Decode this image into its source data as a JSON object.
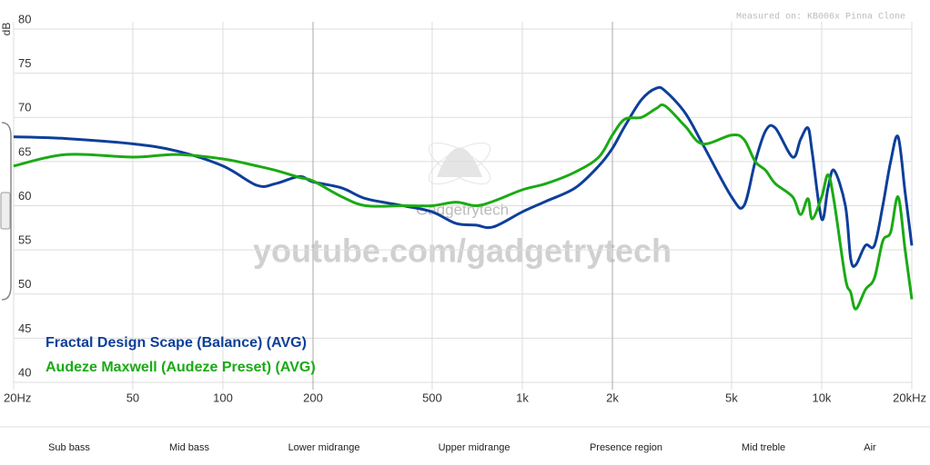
{
  "chart_data": {
    "type": "line",
    "y_label": "dB",
    "annotation": "Measured on: KB006x Pinna Clone",
    "watermark": "youtube.com/gadgetrytech",
    "logo": "Gadgetrytech",
    "bands": [
      "Sub bass",
      "Mid bass",
      "Lower midrange",
      "Upper midrange",
      "Presence region",
      "Mid treble",
      "Air"
    ],
    "x_log": true,
    "xlim": [
      20,
      20000
    ],
    "xticks": [
      {
        "value": 20,
        "label": "20Hz"
      },
      50,
      100,
      200,
      500,
      {
        "value": 1000,
        "label": "1k"
      },
      {
        "value": 2000,
        "label": "2k"
      },
      {
        "value": 5000,
        "label": "5k"
      },
      {
        "value": 10000,
        "label": "10k"
      },
      {
        "value": 20000,
        "label": "20kHz"
      }
    ],
    "ylim": [
      40,
      80
    ],
    "yticks": [
      40,
      45,
      50,
      55,
      60,
      65,
      70,
      75,
      80
    ],
    "grid": true,
    "x": [
      20,
      30,
      50,
      70,
      100,
      130,
      150,
      180,
      200,
      250,
      300,
      400,
      500,
      600,
      700,
      800,
      1000,
      1200,
      1500,
      1800,
      2000,
      2200,
      2500,
      2800,
      3000,
      3500,
      4000,
      5000,
      5500,
      6000,
      6500,
      7000,
      8000,
      8500,
      9000,
      9300,
      10000,
      10500,
      11000,
      12000,
      12500,
      13000,
      14000,
      15000,
      16000,
      17000,
      18000,
      19000,
      20000
    ],
    "series": [
      {
        "name": "Fractal Design Scape (Balance) (AVG)",
        "color": "#0d3f9a",
        "values": [
          67.8,
          67.6,
          67,
          66.2,
          64.5,
          62.3,
          62.5,
          63.3,
          62.7,
          62,
          60.8,
          60,
          59.3,
          58,
          57.8,
          57.6,
          59.3,
          60.5,
          62,
          64.5,
          66.5,
          69,
          72,
          73.3,
          73,
          70.5,
          67,
          61,
          60,
          65,
          68.5,
          68.8,
          65.5,
          67.5,
          68.8,
          66,
          58.5,
          62,
          64,
          60,
          54,
          53.3,
          55.5,
          55.5,
          60,
          65,
          67.8,
          61.5,
          55.5
        ]
      },
      {
        "name": "Audeze Maxwell (Audeze Preset) (AVG)",
        "color": "#1aaa14",
        "values": [
          64.5,
          65.8,
          65.5,
          65.8,
          65.3,
          64.5,
          64,
          63.2,
          62.8,
          61,
          60,
          60,
          60,
          60.4,
          60,
          60.5,
          61.8,
          62.5,
          63.8,
          65.5,
          68,
          69.8,
          70,
          71,
          71.3,
          69,
          67,
          68,
          67.5,
          65,
          64,
          62.5,
          61,
          59,
          60.8,
          58.5,
          61,
          63.5,
          60.5,
          51.8,
          50.2,
          48.3,
          50.5,
          51.8,
          56,
          57,
          61,
          55,
          49.4
        ]
      }
    ]
  }
}
